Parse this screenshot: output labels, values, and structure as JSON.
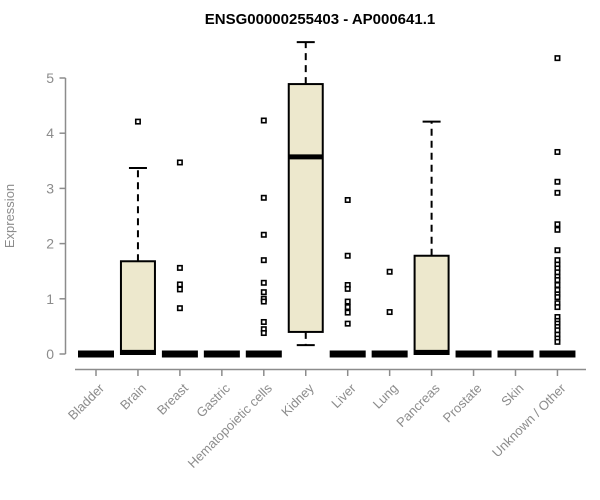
{
  "chart_data": {
    "type": "boxplot",
    "title": "ENSG00000255403 - AP000641.1",
    "ylabel": "Expression",
    "xlabel": "",
    "yticks": [
      0,
      1,
      2,
      3,
      4,
      5
    ],
    "ylim": [
      0,
      5.8
    ],
    "grid": false,
    "legend": "none",
    "colors": {
      "box_fill": "#ede8cd",
      "box_stroke": "#000000",
      "median": "#000000",
      "whisker": "#000000",
      "axis": "#8c8c8c",
      "title": "#000000"
    },
    "categories": [
      "Bladder",
      "Brain",
      "Breast",
      "Gastric",
      "Hematopoietic cells",
      "Kidney",
      "Liver",
      "Lung",
      "Pancreas",
      "Prostate",
      "Skin",
      "Unknown / Other"
    ],
    "boxes": [
      {
        "category": "Bladder",
        "q1": 0,
        "median": 0,
        "q3": 0,
        "whisker_low": 0,
        "whisker_high": 0,
        "outliers": []
      },
      {
        "category": "Brain",
        "q1": 0,
        "median": 0.03,
        "q3": 1.68,
        "whisker_low": 0,
        "whisker_high": 3.37,
        "outliers": [
          4.21
        ]
      },
      {
        "category": "Breast",
        "q1": 0,
        "median": 0,
        "q3": 0,
        "whisker_low": 0,
        "whisker_high": 0,
        "outliers": [
          3.47,
          1.56,
          1.26,
          1.17,
          0.83
        ]
      },
      {
        "category": "Gastric",
        "q1": 0,
        "median": 0,
        "q3": 0,
        "whisker_low": 0,
        "whisker_high": 0,
        "outliers": []
      },
      {
        "category": "Hematopoietic cells",
        "q1": 0,
        "median": 0,
        "q3": 0,
        "whisker_low": 0,
        "whisker_high": 0,
        "outliers": [
          4.23,
          2.83,
          2.16,
          1.7,
          1.29,
          1.12,
          1.0,
          0.95,
          0.58,
          0.45,
          0.38
        ]
      },
      {
        "category": "Kidney",
        "q1": 0.4,
        "median": 3.57,
        "q3": 4.89,
        "whisker_low": 0.16,
        "whisker_high": 5.65,
        "outliers": []
      },
      {
        "category": "Liver",
        "q1": 0,
        "median": 0,
        "q3": 0,
        "whisker_low": 0,
        "whisker_high": 0,
        "outliers": [
          2.79,
          1.78,
          1.25,
          1.18,
          0.95,
          0.85,
          0.75,
          0.55
        ]
      },
      {
        "category": "Lung",
        "q1": 0,
        "median": 0,
        "q3": 0,
        "whisker_low": 0,
        "whisker_high": 0,
        "outliers": [
          1.49,
          0.76
        ]
      },
      {
        "category": "Pancreas",
        "q1": 0,
        "median": 0.03,
        "q3": 1.78,
        "whisker_low": 0,
        "whisker_high": 4.21,
        "outliers": []
      },
      {
        "category": "Prostate",
        "q1": 0,
        "median": 0,
        "q3": 0,
        "whisker_low": 0,
        "whisker_high": 0,
        "outliers": []
      },
      {
        "category": "Skin",
        "q1": 0,
        "median": 0,
        "q3": 0,
        "whisker_low": 0,
        "whisker_high": 0,
        "outliers": []
      },
      {
        "category": "Unknown / Other",
        "q1": 0,
        "median": 0,
        "q3": 0,
        "whisker_low": 0,
        "whisker_high": 0,
        "outliers": [
          5.36,
          3.66,
          3.12,
          2.92,
          2.35,
          2.25,
          1.88,
          1.7,
          1.62,
          1.55,
          1.48,
          1.4,
          1.34,
          1.25,
          1.16,
          1.08,
          1.03,
          0.92,
          0.85,
          0.67,
          0.6,
          0.55,
          0.49,
          0.43,
          0.35,
          0.28,
          0.22
        ]
      }
    ]
  }
}
